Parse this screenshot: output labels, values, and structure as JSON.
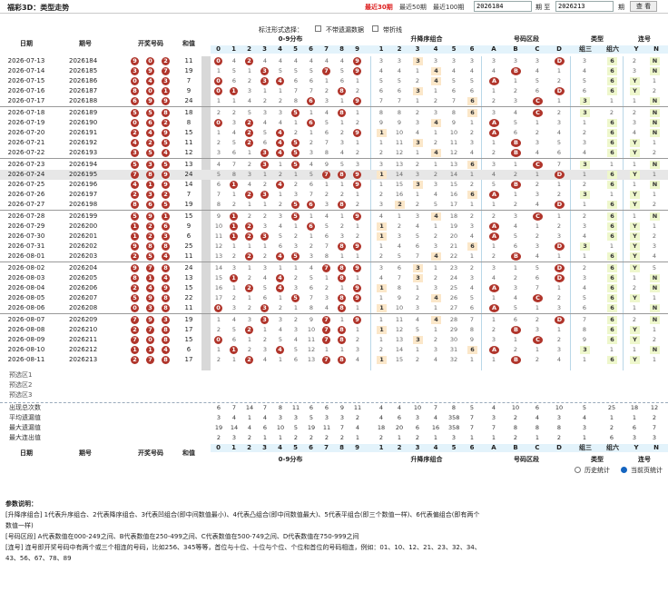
{
  "header": {
    "title": "福彩3D：类型走势",
    "links": [
      "最近30期",
      "最近50期",
      "最近100期"
    ],
    "from_value": "2026184",
    "to_label": "期 至",
    "to_value": "2026213",
    "period_label": "期",
    "query_label": "查 看"
  },
  "options": {
    "label": "标注形式选择：",
    "opt1": "不带遗漏数据",
    "opt2": "带折线"
  },
  "columns": {
    "date": "日期",
    "issue": "期号",
    "numbers": "开奖号码",
    "sum": "和值",
    "dist_title": "0-9分布",
    "sel_title": "升降序组合",
    "zone_title": "号码区段",
    "type_title": "类型",
    "consec_title": "连号",
    "dist_digits": [
      "0",
      "1",
      "2",
      "3",
      "4",
      "5",
      "6",
      "7",
      "8",
      "9"
    ],
    "sel_digits": [
      "1",
      "2",
      "3",
      "4",
      "5",
      "6"
    ],
    "zone_letters": [
      "A",
      "B",
      "C",
      "D"
    ],
    "type_labels": [
      "组三",
      "组六"
    ],
    "consec_labels": [
      "Y",
      "N"
    ]
  },
  "colors": {
    "ball": "#b0352b",
    "header_strip": "#e3f3fb",
    "selected_row": "#e7e7e7"
  },
  "rows": [
    {
      "date": "2026-07-13",
      "issue": "2026184",
      "n": [
        9,
        0,
        2
      ],
      "sum": 11
    },
    {
      "date": "2026-07-14",
      "issue": "2026185",
      "n": [
        3,
        9,
        7
      ],
      "sum": 19
    },
    {
      "date": "2026-07-15",
      "issue": "2026186",
      "n": [
        0,
        4,
        3
      ],
      "sum": 7
    },
    {
      "date": "2026-07-16",
      "issue": "2026187",
      "n": [
        8,
        0,
        1
      ],
      "sum": 9
    },
    {
      "date": "2026-07-17",
      "issue": "2026188",
      "n": [
        6,
        9,
        9
      ],
      "sum": 24
    },
    {
      "date": "2026-07-18",
      "issue": "2026189",
      "n": [
        5,
        5,
        8
      ],
      "sum": 18
    },
    {
      "date": "2026-07-19",
      "issue": "2026190",
      "n": [
        0,
        6,
        2
      ],
      "sum": 8
    },
    {
      "date": "2026-07-20",
      "issue": "2026191",
      "n": [
        2,
        4,
        9
      ],
      "sum": 15
    },
    {
      "date": "2026-07-21",
      "issue": "2026192",
      "n": [
        4,
        2,
        5
      ],
      "sum": 11
    },
    {
      "date": "2026-07-22",
      "issue": "2026193",
      "n": [
        3,
        5,
        4
      ],
      "sum": 12
    },
    {
      "date": "2026-07-23",
      "issue": "2026194",
      "n": [
        5,
        3,
        5
      ],
      "sum": 13
    },
    {
      "date": "2026-07-24",
      "issue": "2026195",
      "n": [
        7,
        8,
        9
      ],
      "sum": 24
    },
    {
      "date": "2026-07-25",
      "issue": "2026196",
      "n": [
        4,
        1,
        9
      ],
      "sum": 14
    },
    {
      "date": "2026-07-26",
      "issue": "2026197",
      "n": [
        2,
        3,
        2
      ],
      "sum": 7
    },
    {
      "date": "2026-07-27",
      "issue": "2026198",
      "n": [
        8,
        6,
        5
      ],
      "sum": 19
    },
    {
      "date": "2026-07-28",
      "issue": "2026199",
      "n": [
        5,
        9,
        1
      ],
      "sum": 15
    },
    {
      "date": "2026-07-29",
      "issue": "2026200",
      "n": [
        1,
        2,
        6
      ],
      "sum": 9
    },
    {
      "date": "2026-07-30",
      "issue": "2026201",
      "n": [
        1,
        2,
        3
      ],
      "sum": 6
    },
    {
      "date": "2026-07-31",
      "issue": "2026202",
      "n": [
        9,
        8,
        8
      ],
      "sum": 25
    },
    {
      "date": "2026-08-01",
      "issue": "2026203",
      "n": [
        2,
        5,
        4
      ],
      "sum": 11
    },
    {
      "date": "2026-08-02",
      "issue": "2026204",
      "n": [
        9,
        7,
        8
      ],
      "sum": 24
    },
    {
      "date": "2026-08-03",
      "issue": "2026205",
      "n": [
        8,
        1,
        4
      ],
      "sum": 13
    },
    {
      "date": "2026-08-04",
      "issue": "2026206",
      "n": [
        2,
        4,
        9
      ],
      "sum": 15
    },
    {
      "date": "2026-08-05",
      "issue": "2026207",
      "n": [
        5,
        9,
        8
      ],
      "sum": 22
    },
    {
      "date": "2026-08-06",
      "issue": "2026208",
      "n": [
        0,
        3,
        8
      ],
      "sum": 11
    },
    {
      "date": "2026-08-07",
      "issue": "2026209",
      "n": [
        7,
        9,
        3
      ],
      "sum": 19
    },
    {
      "date": "2026-08-08",
      "issue": "2026210",
      "n": [
        2,
        7,
        8
      ],
      "sum": 17
    },
    {
      "date": "2026-08-09",
      "issue": "2026211",
      "n": [
        7,
        0,
        8
      ],
      "sum": 15
    },
    {
      "date": "2026-08-10",
      "issue": "2026212",
      "n": [
        1,
        1,
        4
      ],
      "sum": 6
    },
    {
      "date": "2026-08-11",
      "issue": "2026213",
      "n": [
        2,
        7,
        8
      ],
      "sum": 17
    }
  ],
  "presets": [
    "预选区1",
    "预选区2",
    "预选区3"
  ],
  "stats": {
    "labels": [
      "出现总次数",
      "平均遗漏值",
      "最大遗漏值",
      "最大连出值"
    ],
    "values": [
      [
        6,
        7,
        14,
        7,
        8,
        11,
        6,
        6,
        9,
        11,
        4,
        4,
        10,
        7,
        8,
        5,
        4,
        10,
        6,
        10,
        5,
        25,
        18,
        12
      ],
      [
        3,
        4,
        1,
        4,
        3,
        3,
        5,
        3,
        3,
        2,
        4,
        6,
        3,
        4,
        358,
        7,
        3,
        2,
        4,
        3,
        4,
        1,
        1,
        2
      ],
      [
        19,
        14,
        4,
        6,
        10,
        5,
        19,
        11,
        7,
        4,
        18,
        20,
        6,
        16,
        358,
        7,
        7,
        8,
        8,
        8,
        3,
        2,
        6,
        7
      ],
      [
        2,
        3,
        2,
        1,
        1,
        2,
        2,
        2,
        2,
        1,
        2,
        1,
        2,
        1,
        3,
        1,
        1,
        2,
        1,
        2,
        1,
        6,
        3,
        3
      ]
    ]
  },
  "radios": {
    "hist": "历史统计",
    "cur": "当前页统计"
  },
  "notes": {
    "title": "参数说明：",
    "l1": "[升降序组合] 1代表升序组合、2代表降序组合、3代表凹组合(即中间数值最小)、4代表凸组合(即中间数值最大)、5代表平组合(即三个数值一样)、6代表偏组合(即有两个",
    "l2": "数值一样)",
    "l3": "[号码区段] A代表数值在000-249之间、B代表数值在250-499之间、C代表数值在500-749之间、D代表数值在750-999之间",
    "l4": "[连号] 连号即开奖号码中有两个或三个相连的号码，比如256、345等等，首位与十位、十位与个位、个位和首位的号码相连，例如：01、10、12、21、23、32、34、",
    "l5": "43、56、67、78、89"
  }
}
